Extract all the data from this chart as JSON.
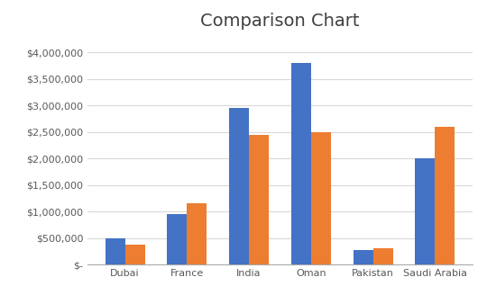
{
  "title": "Comparison Chart",
  "categories": [
    "Dubai",
    "France",
    "India",
    "Oman",
    "Pakistan",
    "Saudi Arabia"
  ],
  "series1": [
    500000,
    950000,
    2950000,
    3800000,
    275000,
    2000000
  ],
  "series2": [
    375000,
    1150000,
    2450000,
    2500000,
    300000,
    2600000
  ],
  "color1": "#4472C4",
  "color2": "#ED7D31",
  "ylim": [
    0,
    4300000
  ],
  "yticks": [
    0,
    500000,
    1000000,
    1500000,
    2000000,
    2500000,
    3000000,
    3500000,
    4000000
  ],
  "background_color": "#FFFFFF",
  "grid_color": "#D9D9D9",
  "title_fontsize": 14,
  "tick_fontsize": 8,
  "bar_width": 0.32
}
